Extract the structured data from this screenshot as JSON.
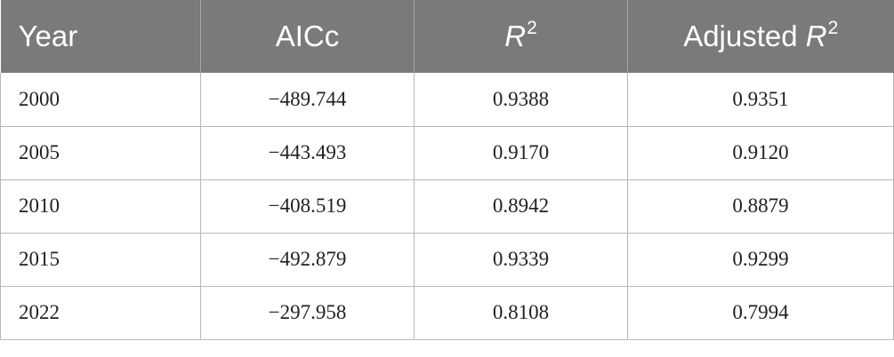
{
  "table": {
    "headers": {
      "year": "Year",
      "aicc": "AICc",
      "r2": {
        "base": "R",
        "sup": "2"
      },
      "adjusted_r2": {
        "prefix": "Adjusted ",
        "base": "R",
        "sup": "2"
      }
    },
    "rows": [
      {
        "year": "2000",
        "aicc": "−489.744",
        "r2": "0.9388",
        "adjusted_r2": "0.9351"
      },
      {
        "year": "2005",
        "aicc": "−443.493",
        "r2": "0.9170",
        "adjusted_r2": "0.9120"
      },
      {
        "year": "2010",
        "aicc": "−408.519",
        "r2": "0.8942",
        "adjusted_r2": "0.8879"
      },
      {
        "year": "2015",
        "aicc": "−492.879",
        "r2": "0.9339",
        "adjusted_r2": "0.9299"
      },
      {
        "year": "2022",
        "aicc": "−297.958",
        "r2": "0.8108",
        "adjusted_r2": "0.7994"
      }
    ]
  }
}
